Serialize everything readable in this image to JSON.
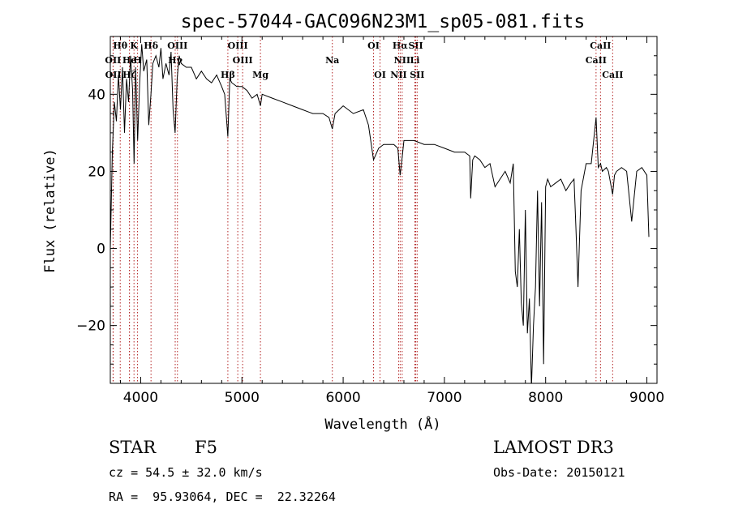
{
  "chart_data": {
    "type": "line",
    "title": "spec-57044-GAC096N23M1_sp05-081.fits",
    "xlabel": "Wavelength (Å)",
    "ylabel": "Flux (relative)",
    "xlim": [
      3700,
      9100
    ],
    "ylim": [
      -35,
      55
    ],
    "xticks": [
      4000,
      5000,
      6000,
      7000,
      8000,
      9000
    ],
    "yticks": [
      -20,
      0,
      20,
      40
    ],
    "ytick_labels": [
      "−20",
      "0",
      "20",
      "40"
    ],
    "spectrum": {
      "name": "flux",
      "x": [
        3700,
        3720,
        3740,
        3760,
        3780,
        3800,
        3820,
        3840,
        3860,
        3880,
        3900,
        3920,
        3935,
        3950,
        3970,
        3990,
        4010,
        4030,
        4060,
        4080,
        4101,
        4120,
        4150,
        4180,
        4200,
        4220,
        4250,
        4280,
        4300,
        4320,
        4340,
        4360,
        4380,
        4400,
        4450,
        4500,
        4550,
        4600,
        4650,
        4700,
        4750,
        4800,
        4830,
        4861,
        4880,
        4900,
        4950,
        5000,
        5050,
        5100,
        5150,
        5183,
        5200,
        5300,
        5400,
        5500,
        5600,
        5700,
        5800,
        5860,
        5893,
        5920,
        6000,
        6100,
        6200,
        6250,
        6300,
        6350,
        6400,
        6450,
        6500,
        6540,
        6563,
        6580,
        6600,
        6650,
        6700,
        6800,
        6900,
        7000,
        7100,
        7200,
        7250,
        7260,
        7280,
        7300,
        7350,
        7400,
        7450,
        7500,
        7550,
        7600,
        7650,
        7680,
        7700,
        7720,
        7740,
        7760,
        7780,
        7800,
        7820,
        7840,
        7860,
        7880,
        7900,
        7920,
        7940,
        7960,
        7980,
        8000,
        8020,
        8050,
        8100,
        8150,
        8200,
        8250,
        8280,
        8300,
        8320,
        8350,
        8400,
        8450,
        8498,
        8520,
        8542,
        8560,
        8600,
        8620,
        8662,
        8680,
        8700,
        8750,
        8800,
        8850,
        8900,
        8950,
        9000,
        9020
      ],
      "y": [
        0,
        25,
        38,
        33,
        45,
        36,
        47,
        30,
        44,
        38,
        50,
        41,
        22,
        47,
        28,
        43,
        53,
        46,
        49,
        32,
        40,
        48,
        50,
        47,
        52,
        44,
        48,
        45,
        51,
        36,
        30,
        44,
        50,
        48,
        47,
        47,
        44,
        46,
        44,
        43,
        45,
        42,
        40,
        29,
        44,
        43,
        42,
        42,
        41,
        39,
        40,
        37,
        40,
        39,
        38,
        37,
        36,
        35,
        35,
        34,
        31,
        35,
        37,
        35,
        36,
        32,
        23,
        26,
        27,
        27,
        27,
        26,
        19,
        23,
        28,
        28,
        28,
        27,
        27,
        26,
        25,
        25,
        24,
        13,
        23,
        24,
        23,
        21,
        22,
        16,
        18,
        20,
        17,
        22,
        -6,
        -10,
        5,
        -14,
        -20,
        10,
        -22,
        -13,
        -36,
        -20,
        -10,
        15,
        -15,
        12,
        -30,
        16,
        18,
        16,
        17,
        18,
        15,
        17,
        18,
        5,
        -10,
        15,
        22,
        22,
        34,
        21,
        22,
        20,
        21,
        20,
        14,
        19,
        20,
        21,
        20,
        7,
        20,
        21,
        19,
        3
      ]
    },
    "lines": [
      {
        "label": "Hθ",
        "wl": 3798,
        "row": 0
      },
      {
        "label": "K",
        "wl": 3934,
        "row": 0
      },
      {
        "label": "Hδ",
        "wl": 4102,
        "row": 0
      },
      {
        "label": "OIII",
        "wl": 4363,
        "row": 0
      },
      {
        "label": "OIII",
        "wl": 4959,
        "row": 0
      },
      {
        "label": "OI",
        "wl": 6300,
        "row": 0
      },
      {
        "label": "Hα",
        "wl": 6563,
        "row": 0
      },
      {
        "label": "SII",
        "wl": 6717,
        "row": 0
      },
      {
        "label": "CaII",
        "wl": 8542,
        "row": 0
      },
      {
        "label": "OII",
        "wl": 3727,
        "row": 1
      },
      {
        "label": "He",
        "wl": 3889,
        "row": 1
      },
      {
        "label": "H",
        "wl": 3969,
        "row": 1
      },
      {
        "label": "Hγ",
        "wl": 4341,
        "row": 1
      },
      {
        "label": "OIII",
        "wl": 5007,
        "row": 1
      },
      {
        "label": "Na",
        "wl": 5893,
        "row": 1
      },
      {
        "label": "NII",
        "wl": 6583,
        "row": 1
      },
      {
        "label": "Li",
        "wl": 6708,
        "row": 1
      },
      {
        "label": "CaII",
        "wl": 8498,
        "row": 1
      },
      {
        "label": "OII",
        "wl": 3729,
        "row": 2
      },
      {
        "label": "Hζ",
        "wl": 3889,
        "row": 2
      },
      {
        "label": "Hβ",
        "wl": 4861,
        "row": 2
      },
      {
        "label": "Mg",
        "wl": 5183,
        "row": 2
      },
      {
        "label": "OI",
        "wl": 6364,
        "row": 2
      },
      {
        "label": "NII",
        "wl": 6548,
        "row": 2
      },
      {
        "label": "SII",
        "wl": 6731,
        "row": 2
      },
      {
        "label": "CaII",
        "wl": 8662,
        "row": 2
      }
    ]
  },
  "info": {
    "class": "STAR",
    "subclass": "F5",
    "survey": "LAMOST DR3",
    "cz": "cz = 54.5 ± 32.0 km/s",
    "obs_date": "Obs-Date: 20150121",
    "coords": "RA =  95.93064, DEC =  22.32264"
  }
}
